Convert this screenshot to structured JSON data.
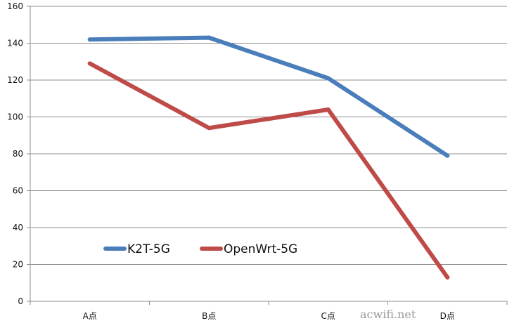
{
  "chart_data": {
    "type": "line",
    "categories": [
      "A点",
      "B点",
      "C点",
      "D点"
    ],
    "series": [
      {
        "name": "K2T-5G",
        "values": [
          142,
          143,
          121,
          79
        ],
        "color": "#4a7ebb"
      },
      {
        "name": "OpenWrt-5G",
        "values": [
          129,
          94,
          104,
          13
        ],
        "color": "#be4b48"
      }
    ],
    "ylim": [
      0,
      160
    ],
    "yticks": [
      "0",
      "20",
      "40",
      "60",
      "80",
      "100",
      "120",
      "140",
      "160"
    ],
    "grid": true,
    "legend_placement": "inside-bottom-left",
    "title": "",
    "xlabel": "",
    "ylabel": ""
  },
  "watermark": "acwifi.net"
}
